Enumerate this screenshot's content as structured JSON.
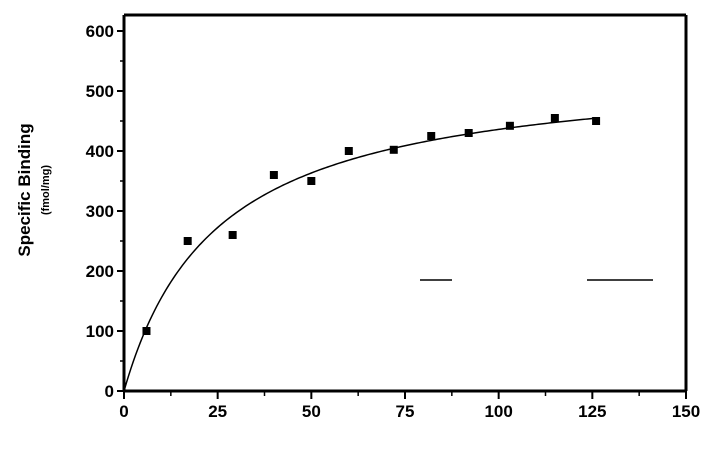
{
  "chart_data": {
    "type": "scatter",
    "ylabel": "Specific Binding",
    "yunit": "(fmol/mg)",
    "xlim": [
      0,
      150
    ],
    "ylim": [
      0,
      600
    ],
    "xticks": [
      "0",
      "25",
      "50",
      "75",
      "100",
      "125",
      "150"
    ],
    "yticks": [
      "0",
      "100",
      "200",
      "300",
      "400",
      "500",
      "600"
    ],
    "grid": false,
    "legend": "none",
    "series": [
      {
        "x": [
          6,
          17,
          29,
          40,
          50,
          60,
          72,
          82,
          92,
          103,
          115,
          126
        ],
        "y": [
          100,
          250,
          260,
          360,
          350,
          400,
          402,
          425,
          430,
          442,
          455,
          450
        ]
      }
    ],
    "fit_curve": {
      "x_start": 0,
      "x_end": 125,
      "Bmax": 545,
      "Kd": 25
    },
    "colors": {
      "marker": "#000000",
      "curve": "#000000",
      "axis": "#000000"
    }
  }
}
